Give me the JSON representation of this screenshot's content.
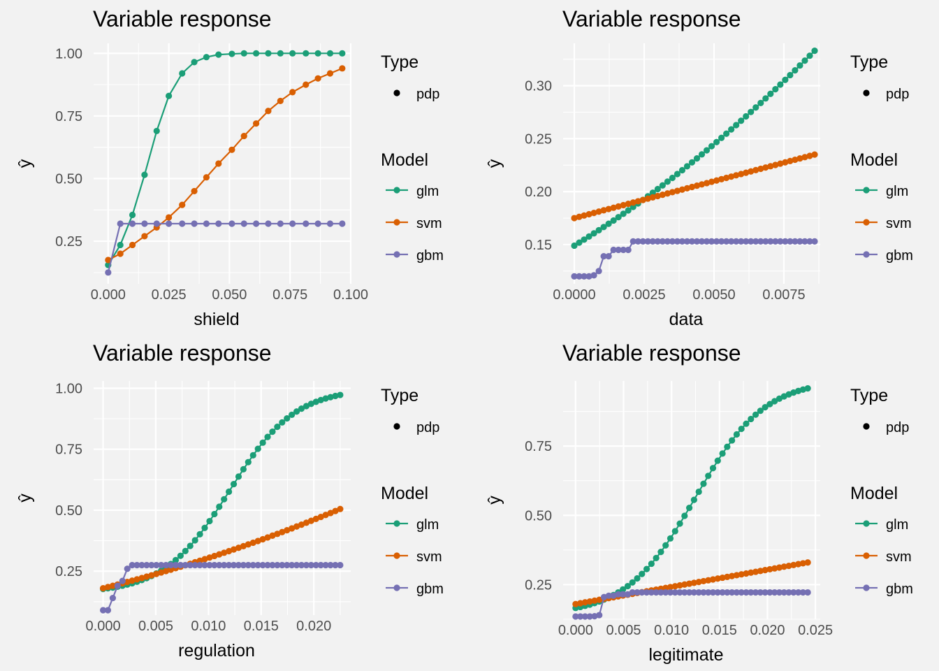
{
  "legend": {
    "type_title": "Type",
    "type_items": [
      {
        "label": "pdp",
        "color": "#000000"
      }
    ],
    "model_title": "Model",
    "models": [
      {
        "label": "glm",
        "color": "#1b9e77"
      },
      {
        "label": "svm",
        "color": "#d95f02"
      },
      {
        "label": "gbm",
        "color": "#7570b3"
      }
    ]
  },
  "chart_data": [
    {
      "type": "line",
      "title": "Variable response",
      "xlabel": "shield",
      "ylabel": "ŷ",
      "xlim": [
        -0.006,
        0.1
      ],
      "ylim": [
        0.08,
        1.04
      ],
      "xticks": [
        0.0,
        0.025,
        0.05,
        0.075,
        0.1
      ],
      "xtick_labels": [
        "0.000",
        "0.025",
        "0.050",
        "0.075",
        "0.100"
      ],
      "yticks": [
        0.25,
        0.5,
        0.75,
        1.0
      ],
      "ytick_labels": [
        "0.25",
        "0.50",
        "0.75",
        "1.00"
      ],
      "x": [
        0.0,
        0.005,
        0.01,
        0.015,
        0.02,
        0.025,
        0.0305,
        0.0355,
        0.0405,
        0.0455,
        0.051,
        0.056,
        0.061,
        0.066,
        0.071,
        0.076,
        0.0815,
        0.0865,
        0.0915,
        0.0965
      ],
      "series": [
        {
          "name": "glm",
          "values": [
            0.155,
            0.235,
            0.355,
            0.515,
            0.69,
            0.83,
            0.92,
            0.965,
            0.985,
            0.995,
            0.998,
            1.0,
            1.0,
            1.0,
            1.0,
            1.0,
            1.0,
            1.0,
            1.0,
            1.0
          ]
        },
        {
          "name": "svm",
          "values": [
            0.175,
            0.2,
            0.235,
            0.27,
            0.305,
            0.345,
            0.395,
            0.45,
            0.505,
            0.56,
            0.615,
            0.67,
            0.72,
            0.77,
            0.81,
            0.845,
            0.875,
            0.9,
            0.92,
            0.94
          ]
        },
        {
          "name": "gbm",
          "values": [
            0.125,
            0.32,
            0.32,
            0.32,
            0.32,
            0.32,
            0.32,
            0.32,
            0.32,
            0.32,
            0.32,
            0.32,
            0.32,
            0.32,
            0.32,
            0.32,
            0.32,
            0.32,
            0.32,
            0.32
          ]
        }
      ]
    },
    {
      "type": "line",
      "title": "Variable response",
      "xlabel": "data",
      "ylabel": "ŷ",
      "xlim": [
        -0.0004,
        0.0088
      ],
      "ylim": [
        0.113,
        0.34
      ],
      "xticks": [
        0.0,
        0.0025,
        0.005,
        0.0075
      ],
      "xtick_labels": [
        "0.0000",
        "0.0025",
        "0.0050",
        "0.0075"
      ],
      "yticks": [
        0.15,
        0.2,
        0.25,
        0.3
      ],
      "ytick_labels": [
        "0.15",
        "0.20",
        "0.25",
        "0.30"
      ],
      "x_range": [
        0.0,
        0.0086,
        50
      ],
      "series": [
        {
          "name": "glm",
          "start": 0.149,
          "end": 0.333,
          "curve": "convex"
        },
        {
          "name": "svm",
          "start": 0.175,
          "end": 0.235,
          "curve": "linear"
        },
        {
          "name": "gbm",
          "steps": [
            [
              0.0,
              0.12
            ],
            [
              0.0006,
              0.121
            ],
            [
              0.0008,
              0.125
            ],
            [
              0.0009,
              0.133
            ],
            [
              0.001,
              0.139
            ],
            [
              0.0014,
              0.145
            ],
            [
              0.002,
              0.153
            ]
          ]
        }
      ]
    },
    {
      "type": "line",
      "title": "Variable response",
      "xlabel": "regulation",
      "ylabel": "ŷ",
      "xlim": [
        -0.0009,
        0.0235
      ],
      "ylim": [
        0.07,
        1.03
      ],
      "xticks": [
        0.0,
        0.005,
        0.01,
        0.015,
        0.02
      ],
      "xtick_labels": [
        "0.000",
        "0.005",
        "0.010",
        "0.015",
        "0.020"
      ],
      "yticks": [
        0.25,
        0.5,
        0.75,
        1.0
      ],
      "ytick_labels": [
        "0.25",
        "0.50",
        "0.75",
        "1.00"
      ],
      "x_range": [
        0.0,
        0.0225,
        50
      ],
      "series": [
        {
          "name": "glm",
          "logistic": {
            "min": 0.16,
            "max": 1.0,
            "mid": 0.012,
            "scale": 0.0031
          }
        },
        {
          "name": "svm",
          "start": 0.18,
          "end": 0.505,
          "curve": "convex"
        },
        {
          "name": "gbm",
          "steps": [
            [
              0.0,
              0.09
            ],
            [
              0.0005,
              0.14
            ],
            [
              0.001,
              0.19
            ],
            [
              0.0015,
              0.21
            ],
            [
              0.002,
              0.26
            ],
            [
              0.0025,
              0.275
            ]
          ]
        }
      ]
    },
    {
      "type": "line",
      "title": "Variable response",
      "xlabel": "legitimate",
      "ylabel": "ŷ",
      "xlim": [
        -0.0013,
        0.0255
      ],
      "ylim": [
        0.125,
        0.985
      ],
      "xticks": [
        0.0,
        0.005,
        0.01,
        0.015,
        0.02,
        0.025
      ],
      "xtick_labels": [
        "0.000",
        "0.005",
        "0.010",
        "0.015",
        "0.020",
        "0.025"
      ],
      "yticks": [
        0.25,
        0.5,
        0.75
      ],
      "ytick_labels": [
        "0.25",
        "0.50",
        "0.75"
      ],
      "x_range": [
        0.0,
        0.0242,
        50
      ],
      "series": [
        {
          "name": "glm",
          "logistic": {
            "min": 0.14,
            "max": 0.99,
            "mid": 0.0125,
            "scale": 0.0036
          }
        },
        {
          "name": "svm",
          "start": 0.18,
          "end": 0.33,
          "curve": "linear"
        },
        {
          "name": "gbm",
          "steps": [
            [
              0.0,
              0.135
            ],
            [
              0.0015,
              0.136
            ],
            [
              0.002,
              0.14
            ],
            [
              0.0025,
              0.205
            ],
            [
              0.003,
              0.21
            ],
            [
              0.004,
              0.215
            ],
            [
              0.0055,
              0.222
            ]
          ]
        }
      ]
    }
  ]
}
